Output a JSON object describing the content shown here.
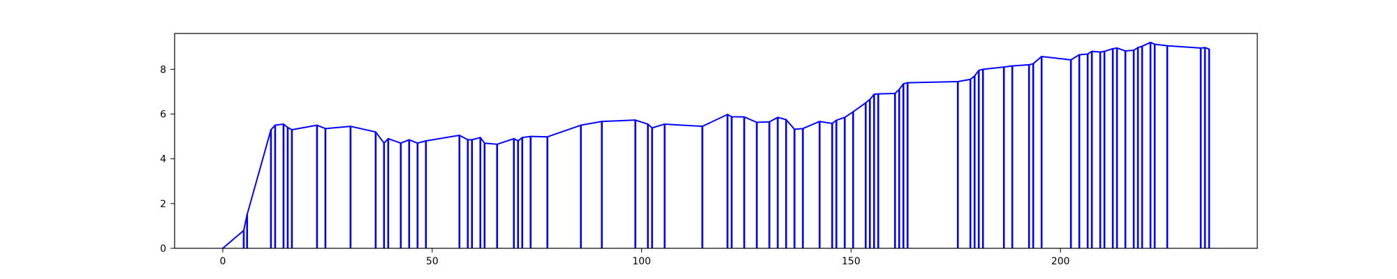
{
  "chart_data": {
    "type": "line",
    "title": "",
    "xlabel": "",
    "ylabel": "",
    "xlim": [
      -11.5,
      247
    ],
    "ylim": [
      0,
      9.6
    ],
    "grid": false,
    "x_ticks": [
      0,
      50,
      100,
      150,
      200
    ],
    "x_tick_labels": [
      "0",
      "50",
      "100",
      "150",
      "200"
    ],
    "y_ticks": [
      0,
      2,
      4,
      6,
      8
    ],
    "y_tick_labels": [
      "0",
      "2",
      "4",
      "6",
      "8"
    ],
    "series": [
      {
        "color": "#0000ff",
        "style": "line with vertical drop lines to baseline at each point",
        "x": [
          0,
          5,
          5.8,
          11.5,
          12.5,
          14.5,
          15.5,
          16.5,
          22.5,
          24.5,
          30.5,
          36.5,
          38.5,
          39.5,
          42.5,
          44.5,
          46.5,
          48.5,
          56.5,
          58.5,
          59.5,
          61.5,
          62.5,
          65.5,
          69.5,
          70.5,
          71.5,
          73.5,
          77.5,
          85.5,
          90.5,
          98.5,
          101.5,
          102.5,
          105.5,
          114.5,
          120.5,
          121.5,
          124.5,
          127.5,
          130.5,
          132.5,
          134.5,
          136.5,
          138.5,
          142.5,
          145.5,
          146.5,
          148.5,
          150.5,
          153.5,
          154.5,
          155.5,
          156.5,
          160.5,
          161.5,
          162.5,
          163.5,
          175.5,
          178.5,
          179.5,
          180.5,
          181.5,
          186.5,
          188.5,
          192.5,
          193.5,
          195.5,
          202.5,
          204.5,
          206.5,
          207.5,
          209.5,
          210.5,
          212.5,
          213.5,
          215.5,
          217.5,
          218.5,
          219.5,
          221.5,
          222.5,
          225.5,
          233.5,
          234.5,
          235.5
        ],
        "values": [
          0,
          0.8,
          1.5,
          5.3,
          5.5,
          5.55,
          5.4,
          5.3,
          5.5,
          5.35,
          5.45,
          5.2,
          4.7,
          4.9,
          4.7,
          4.85,
          4.7,
          4.8,
          5.05,
          4.85,
          4.85,
          4.95,
          4.7,
          4.65,
          4.9,
          4.8,
          4.95,
          5.0,
          4.98,
          5.5,
          5.67,
          5.73,
          5.55,
          5.38,
          5.55,
          5.45,
          5.98,
          5.88,
          5.87,
          5.63,
          5.65,
          5.85,
          5.75,
          5.32,
          5.35,
          5.67,
          5.58,
          5.72,
          5.85,
          6.1,
          6.5,
          6.65,
          6.88,
          6.9,
          6.92,
          7.1,
          7.35,
          7.4,
          7.45,
          7.55,
          7.7,
          7.95,
          8.0,
          8.1,
          8.15,
          8.2,
          8.25,
          8.57,
          8.42,
          8.65,
          8.68,
          8.8,
          8.77,
          8.8,
          8.92,
          8.95,
          8.82,
          8.85,
          8.97,
          9.03,
          9.2,
          9.12,
          9.05,
          8.95,
          8.97,
          8.9
        ]
      }
    ]
  }
}
